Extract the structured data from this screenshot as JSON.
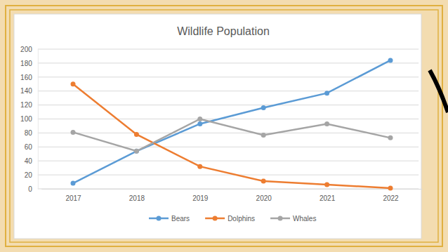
{
  "chart_data": {
    "type": "line",
    "title": "Wildlife Population",
    "categories": [
      "2017",
      "2018",
      "2019",
      "2020",
      "2021",
      "2022"
    ],
    "series": [
      {
        "name": "Bears",
        "color": "#5b9bd5",
        "values": [
          8,
          54,
          93,
          116,
          137,
          184
        ]
      },
      {
        "name": "Dolphins",
        "color": "#ed7d31",
        "values": [
          150,
          78,
          32,
          11,
          6,
          1
        ]
      },
      {
        "name": "Whales",
        "color": "#a5a5a5",
        "values": [
          81,
          54,
          100,
          77,
          93,
          73
        ]
      }
    ],
    "ylim": [
      0,
      200
    ],
    "yticks": [
      0,
      20,
      40,
      60,
      80,
      100,
      120,
      140,
      160,
      180,
      200
    ],
    "grid": true,
    "legend": "bottom",
    "marker": "circle"
  }
}
